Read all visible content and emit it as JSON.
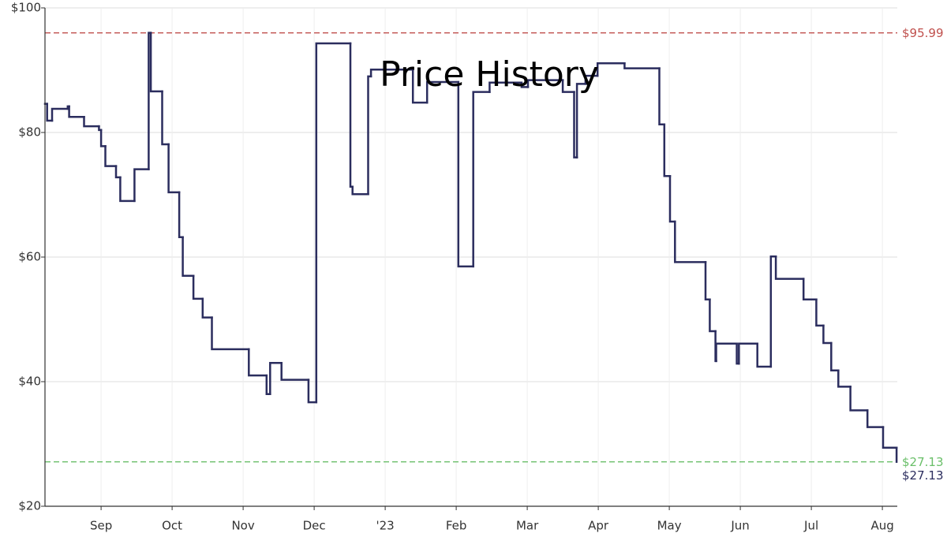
{
  "chart_data": {
    "type": "step",
    "title": "Price History",
    "x": [
      0.21,
      0.24,
      0.31,
      0.53,
      0.55,
      0.76,
      0.97,
      1.0,
      1.06,
      1.21,
      1.27,
      1.47,
      1.67,
      1.7,
      1.86,
      1.95,
      2.1,
      2.15,
      2.3,
      2.43,
      2.56,
      3.08,
      3.33,
      3.38,
      3.54,
      3.92,
      4.03,
      4.51,
      4.54,
      4.76,
      4.8,
      5.39,
      5.59,
      6.03,
      6.24,
      6.47,
      6.92,
      7.01,
      7.5,
      7.66,
      7.7,
      7.82,
      7.99,
      8.37,
      8.86,
      8.93,
      9.01,
      9.08,
      9.51,
      9.57,
      9.65,
      9.66,
      9.95,
      9.98,
      10.24,
      10.43,
      10.5,
      10.89,
      11.07,
      11.17,
      11.28,
      11.38,
      11.55,
      11.79,
      12.01,
      12.2
    ],
    "series": [
      {
        "color": "#2b2d5e",
        "values": [
          84.6,
          81.9,
          83.8,
          84.2,
          82.5,
          81.0,
          80.4,
          77.8,
          74.6,
          72.8,
          69.0,
          74.1,
          95.99,
          86.6,
          78.1,
          70.4,
          63.2,
          57.0,
          53.3,
          50.3,
          45.2,
          41.0,
          38.0,
          43.0,
          40.3,
          36.7,
          94.3,
          71.3,
          70.1,
          89.0,
          90.1,
          84.8,
          88.1,
          58.5,
          86.5,
          88.0,
          87.3,
          88.4,
          86.5,
          76.0,
          87.8,
          89.1,
          91.1,
          90.3,
          81.3,
          73.0,
          65.7,
          59.2,
          53.2,
          48.1,
          43.3,
          46.1,
          42.9,
          46.1,
          42.4,
          60.1,
          56.5,
          53.2,
          49.0,
          46.2,
          41.8,
          39.2,
          35.4,
          32.7,
          29.4,
          27.13
        ]
      }
    ],
    "xlim": [
      0.21,
      12.21
    ],
    "xticks": [
      {
        "value": 1,
        "label": "Sep"
      },
      {
        "value": 2,
        "label": "Oct"
      },
      {
        "value": 3,
        "label": "Nov"
      },
      {
        "value": 4,
        "label": "Dec"
      },
      {
        "value": 5,
        "label": "'23"
      },
      {
        "value": 6,
        "label": "Feb"
      },
      {
        "value": 7,
        "label": "Mar"
      },
      {
        "value": 8,
        "label": "Apr"
      },
      {
        "value": 9,
        "label": "May"
      },
      {
        "value": 10,
        "label": "Jun"
      },
      {
        "value": 11,
        "label": "Jul"
      },
      {
        "value": 12,
        "label": "Aug"
      }
    ],
    "ylim": [
      20,
      100
    ],
    "yticks": [
      {
        "value": 20,
        "label": "$20"
      },
      {
        "value": 40,
        "label": "$40"
      },
      {
        "value": 60,
        "label": "$60"
      },
      {
        "value": 80,
        "label": "$80"
      },
      {
        "value": 100,
        "label": "$100"
      }
    ],
    "grid": true,
    "reference_lines": [
      {
        "value": 95.99,
        "label": "$95.99",
        "color": "#c0504d"
      },
      {
        "value": 27.13,
        "label": "$27.13",
        "color": "#6abf69"
      }
    ],
    "end_label": {
      "value": 27.13,
      "label": "$27.13",
      "color": "#2b2d5e"
    }
  }
}
